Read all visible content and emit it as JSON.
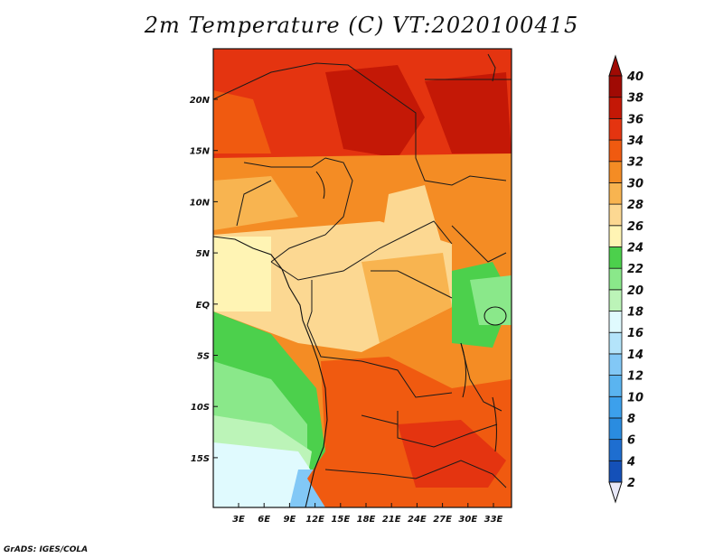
{
  "title": "2m Temperature (C) VT:2020100415",
  "credit": "GrADS: IGES/COLA",
  "map": {
    "lon_ticks": [
      "3E",
      "6E",
      "9E",
      "12E",
      "15E",
      "18E",
      "21E",
      "24E",
      "27E",
      "30E",
      "33E"
    ],
    "lat_ticks": [
      "20N",
      "15N",
      "10N",
      "5N",
      "EQ",
      "5S",
      "10S",
      "15S"
    ]
  },
  "colorbar": {
    "levels": [
      "2",
      "4",
      "6",
      "8",
      "10",
      "12",
      "14",
      "16",
      "18",
      "20",
      "22",
      "24",
      "26",
      "28",
      "30",
      "32",
      "34",
      "36",
      "38",
      "40"
    ],
    "colors": [
      "#0c0c6c",
      "#1450b8",
      "#1e6ed0",
      "#2a8ce0",
      "#3ca0ec",
      "#5ab4f0",
      "#82c8f6",
      "#b4e4fa",
      "#e0fafe",
      "#bcf4b8",
      "#8ae88a",
      "#4cd04c",
      "#fff4b4",
      "#fcd892",
      "#f8b450",
      "#f48c24",
      "#f05a10",
      "#e43410",
      "#c41806",
      "#a00a04"
    ],
    "over_color": "#a00a04",
    "under_color": "#e8e8f8"
  }
}
